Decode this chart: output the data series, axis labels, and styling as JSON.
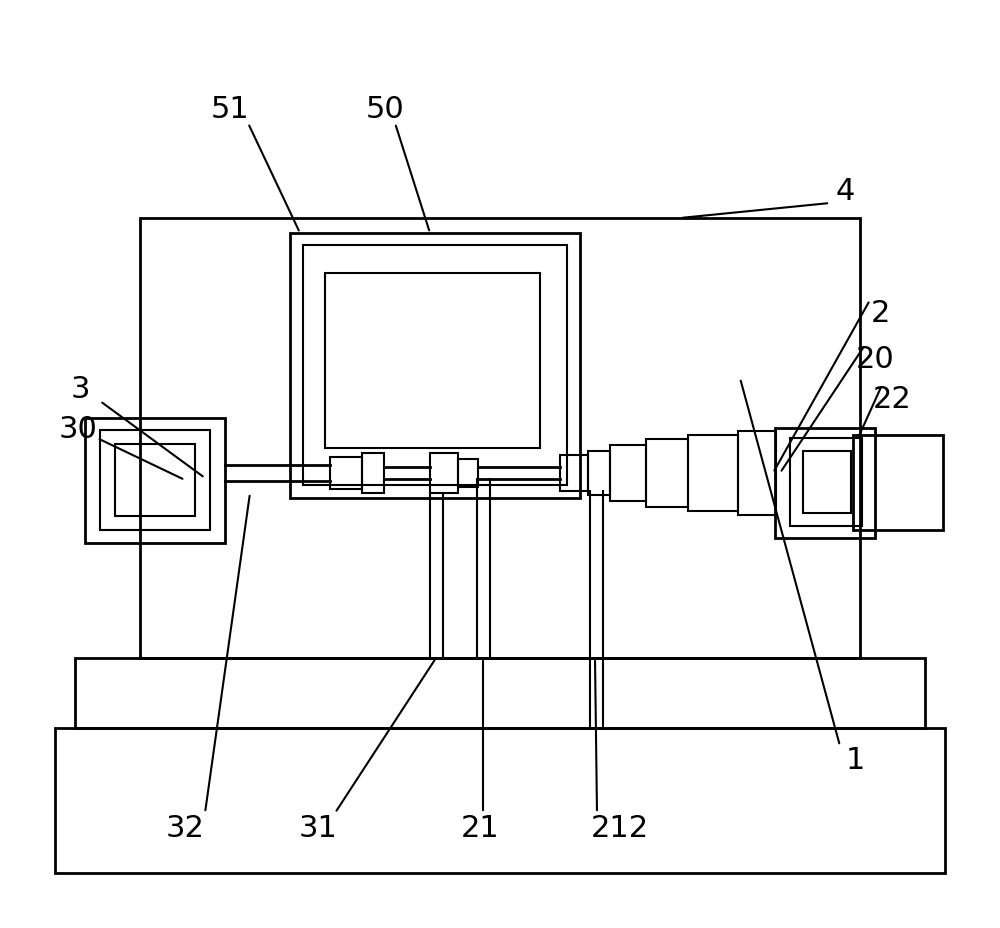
{
  "bg_color": "#ffffff",
  "line_color": "#000000",
  "lw_thick": 2.0,
  "lw_thin": 1.5,
  "fig_width": 10.0,
  "fig_height": 9.29,
  "label_fontsize": 22
}
